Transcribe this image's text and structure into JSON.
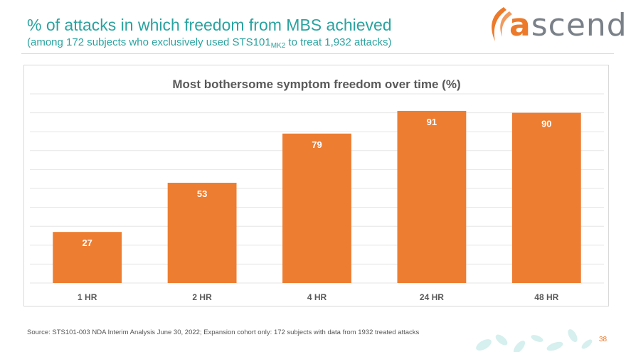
{
  "slide": {
    "title": "% of attacks in which freedom from MBS achieved",
    "subtitle_prefix": "(among 172 subjects who exclusively used STS101",
    "subtitle_subscript": "MK2",
    "subtitle_suffix": " to treat 1,932 attacks)",
    "source": "Source:  STS101-003 NDA Interim Analysis June 30, 2022; Expansion cohort only: 172 subjects with data from 1932 treated attacks",
    "page_number": "38"
  },
  "logo": {
    "brand_a": "a",
    "brand_rest": "scend",
    "colors": {
      "accent": "#ec7a2a",
      "text": "#7a8088"
    }
  },
  "colors": {
    "title": "#2aa3a0",
    "bar": "#ed7d31",
    "gridline": "#e6e6e6",
    "axis_text": "#595959",
    "bar_label": "#ffffff",
    "leaf": "#d6efef"
  },
  "chart_data": {
    "type": "bar",
    "title": "Most bothersome symptom freedom over time (%)",
    "categories": [
      "1 HR",
      "2 HR",
      "4 HR",
      "24 HR",
      "48 HR"
    ],
    "values": [
      27,
      53,
      79,
      91,
      90
    ],
    "xlabel": "",
    "ylabel": "",
    "ylim": [
      0,
      100
    ],
    "grid": true,
    "data_labels": "inside-end"
  }
}
